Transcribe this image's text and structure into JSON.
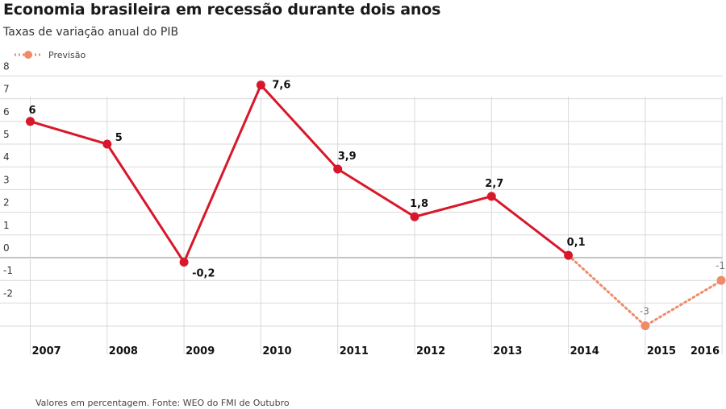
{
  "title": "Economia brasileira em recessão durante dois anos",
  "subtitle": "Taxas de variação anual do PIB",
  "legend": {
    "forecast_label": "Previsão"
  },
  "footnote": "Valores em percentagem. Fonte: WEO do FMI de Outubro",
  "colors": {
    "actual": "#d7182a",
    "forecast": "#ee8c6a",
    "grid": "#d9d9d9",
    "zero": "#888888"
  },
  "chart_data": {
    "type": "line",
    "x": [
      "2007",
      "2008",
      "2009",
      "2010",
      "2011",
      "2012",
      "2013",
      "2014",
      "2015",
      "2016"
    ],
    "series": [
      {
        "values": [
          6,
          5,
          -0.2,
          7.6,
          3.9,
          1.8,
          2.7,
          0.1,
          null,
          null
        ],
        "labels": [
          "6",
          "5",
          "-0,2",
          "7,6",
          "3,9",
          "1,8",
          "2,7",
          "0,1",
          "",
          ""
        ]
      },
      {
        "name": "Previsão",
        "values": [
          null,
          null,
          null,
          null,
          null,
          null,
          null,
          0.1,
          -3,
          -1
        ],
        "labels": [
          "",
          "",
          "",
          "",
          "",
          "",
          "",
          "",
          "-3",
          "-1"
        ]
      }
    ],
    "yticks": [
      "8",
      "7",
      "6",
      "5",
      "4",
      "3",
      "2",
      "1",
      "0",
      "-1",
      "-2"
    ],
    "ylim": [
      -3,
      8
    ],
    "grid": true
  }
}
